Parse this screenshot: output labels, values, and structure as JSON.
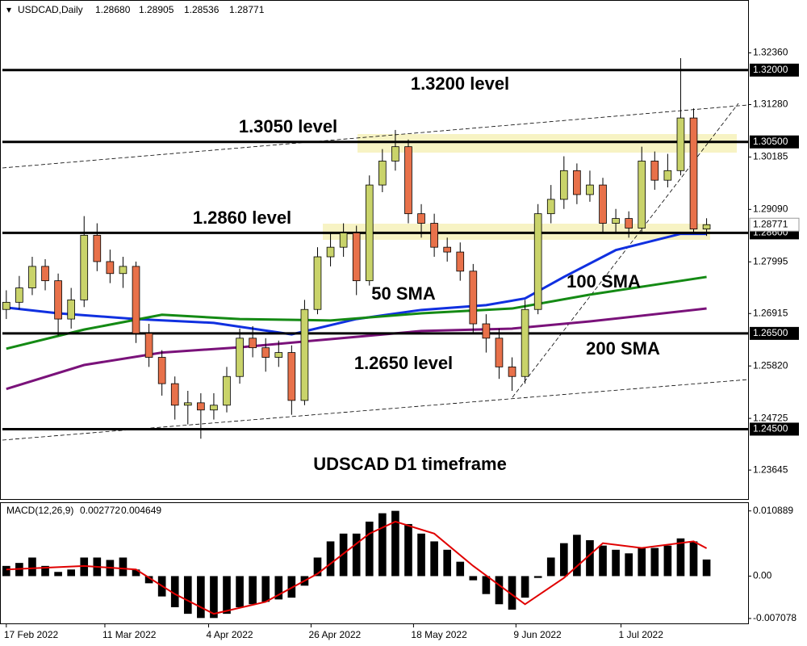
{
  "chart_data": [
    {
      "type": "candlestick",
      "title": "USDCAD,Daily",
      "quote_labels": [
        "1.28680",
        "1.28905",
        "1.28536",
        "1.28771"
      ],
      "annotation": "UDSCAD D1 timeframe",
      "open": [
        1.27,
        1.2715,
        1.2745,
        1.279,
        1.276,
        1.268,
        1.272,
        1.2855,
        1.28,
        1.2775,
        1.279,
        1.265,
        1.26,
        1.2545,
        1.25,
        1.2505,
        1.249,
        1.25,
        1.256,
        1.264,
        1.262,
        1.26,
        1.261,
        1.251,
        1.27,
        1.281,
        1.283,
        1.286,
        1.276,
        1.296,
        1.301,
        1.304,
        1.29,
        1.288,
        1.283,
        1.282,
        1.278,
        1.267,
        1.264,
        1.258,
        1.256,
        1.27,
        1.29,
        1.293,
        1.299,
        1.294,
        1.296,
        1.288,
        1.289,
        1.287,
        1.301,
        1.297,
        1.299,
        1.31,
        1.2868
      ],
      "high": [
        1.274,
        1.277,
        1.281,
        1.2805,
        1.2775,
        1.2745,
        1.2895,
        1.288,
        1.2825,
        1.281,
        1.28,
        1.267,
        1.2615,
        1.256,
        1.253,
        1.2525,
        1.2525,
        1.258,
        1.266,
        1.2665,
        1.264,
        1.2635,
        1.2625,
        1.272,
        1.283,
        1.286,
        1.288,
        1.2875,
        1.298,
        1.3035,
        1.3075,
        1.3055,
        1.292,
        1.29,
        1.285,
        1.284,
        1.2795,
        1.269,
        1.266,
        1.26,
        1.272,
        1.292,
        1.296,
        1.302,
        1.3005,
        1.299,
        1.2975,
        1.291,
        1.2905,
        1.304,
        1.303,
        1.3025,
        1.3225,
        1.312,
        1.28905
      ],
      "low": [
        1.268,
        1.27,
        1.273,
        1.274,
        1.2645,
        1.266,
        1.2705,
        1.278,
        1.2755,
        1.2745,
        1.263,
        1.258,
        1.252,
        1.247,
        1.246,
        1.243,
        1.247,
        1.2485,
        1.2545,
        1.26,
        1.257,
        1.258,
        1.248,
        1.25,
        1.269,
        1.279,
        1.281,
        1.273,
        1.275,
        1.2945,
        1.299,
        1.288,
        1.285,
        1.281,
        1.28,
        1.276,
        1.265,
        1.261,
        1.2555,
        1.253,
        1.2545,
        1.269,
        1.288,
        1.291,
        1.292,
        1.2925,
        1.286,
        1.286,
        1.285,
        1.286,
        1.295,
        1.2955,
        1.298,
        1.286,
        1.28536
      ],
      "close": [
        1.2715,
        1.2745,
        1.279,
        1.276,
        1.268,
        1.272,
        1.2855,
        1.28,
        1.2775,
        1.279,
        1.265,
        1.26,
        1.2545,
        1.25,
        1.2505,
        1.249,
        1.25,
        1.256,
        1.264,
        1.262,
        1.26,
        1.261,
        1.251,
        1.27,
        1.281,
        1.283,
        1.286,
        1.276,
        1.296,
        1.301,
        1.304,
        1.29,
        1.288,
        1.283,
        1.282,
        1.278,
        1.267,
        1.264,
        1.258,
        1.256,
        1.27,
        1.29,
        1.293,
        1.299,
        1.294,
        1.296,
        1.288,
        1.289,
        1.287,
        1.301,
        1.297,
        1.299,
        1.31,
        1.2868,
        1.28771
      ],
      "up_color": "#c9d36a",
      "down_color": "#e8714a",
      "xlim": [
        -0.3,
        57.2
      ],
      "ylim": [
        1.2304,
        1.3338
      ],
      "yticks": [
        {
          "value": 1.3236,
          "label": "1.32360"
        },
        {
          "value": 1.3128,
          "label": "1.31280"
        },
        1.30185,
        {
          "value": 1.2909,
          "label": "1.29090"
        },
        1.27995,
        1.26915,
        {
          "value": 1.2582,
          "label": "1.25820"
        },
        1.24725,
        1.23645
      ],
      "xticks": [
        {
          "value": 0,
          "label": "17 Feb 2022"
        },
        {
          "value": 7.6,
          "label": "11 Mar 2022"
        },
        {
          "value": 15.6,
          "label": "4 Apr 2022"
        },
        {
          "value": 23.5,
          "label": "26 Apr 2022"
        },
        {
          "value": 31.4,
          "label": "18 May 2022"
        },
        {
          "value": 39.3,
          "label": "9 Jun 2022"
        },
        {
          "value": 47.4,
          "label": "1 Jul 2022"
        }
      ],
      "levels": [
        {
          "value": 1.32,
          "label": "1.32000",
          "note": "1.3200 level"
        },
        {
          "value": 1.305,
          "label": "1.30500",
          "note": "1.3050 level"
        },
        {
          "value": 1.286,
          "label": "1.28600",
          "note": "1.2860 level"
        },
        {
          "value": 1.265,
          "label": "1.26500",
          "note": "1.2650 level"
        },
        {
          "value": 1.245,
          "label": "1.24500"
        }
      ],
      "series": [
        {
          "name": "50 SMA",
          "color": "#1030e0",
          "x": [
            0,
            4,
            10,
            16,
            22,
            27,
            32,
            37,
            40,
            43,
            47,
            52,
            54
          ],
          "values": [
            1.2704,
            1.2692,
            1.268,
            1.2672,
            1.2648,
            1.268,
            1.2699,
            1.2709,
            1.2723,
            1.2768,
            1.2824,
            1.2858,
            1.2858
          ]
        },
        {
          "name": "100 SMA",
          "color": "#148a14",
          "x": [
            0,
            6,
            12,
            18,
            25,
            32,
            39,
            45,
            54
          ],
          "values": [
            1.2618,
            1.2658,
            1.2689,
            1.268,
            1.2677,
            1.2692,
            1.2702,
            1.2731,
            1.2768
          ]
        },
        {
          "name": "200 SMA",
          "color": "#7a127a",
          "x": [
            0,
            6,
            12,
            18,
            25,
            32,
            39,
            45,
            54
          ],
          "values": [
            1.2534,
            1.2584,
            1.261,
            1.2621,
            1.2638,
            1.2655,
            1.266,
            1.2675,
            1.2702
          ]
        }
      ]
    },
    {
      "type": "macd",
      "title": "MACD(12,26,9)",
      "bar_color": "#000000",
      "values": [
        0.0017,
        0.0022,
        0.0031,
        0.0017,
        0.0007,
        0.0011,
        0.0031,
        0.0031,
        0.0027,
        0.0031,
        0.0011,
        -0.0012,
        -0.0034,
        -0.0052,
        -0.0063,
        -0.007,
        -0.007,
        -0.0063,
        -0.0052,
        -0.0047,
        -0.0043,
        -0.0039,
        -0.0036,
        -0.0016,
        0.0031,
        0.0058,
        0.0071,
        0.0071,
        0.0091,
        0.0105,
        0.0109,
        0.0087,
        0.0071,
        0.0058,
        0.0044,
        0.0024,
        -0.0007,
        -0.003,
        -0.0047,
        -0.0056,
        -0.0036,
        -0.0003,
        0.0031,
        0.0055,
        0.0069,
        0.006,
        0.0051,
        0.0044,
        0.0038,
        0.0047,
        0.0047,
        0.0051,
        0.0063,
        0.0058,
        0.002772
      ],
      "signal": {
        "color": "#e00000",
        "x": [
          0,
          6,
          10,
          13,
          16,
          20,
          24,
          28,
          30,
          33,
          36,
          40,
          43,
          46,
          49,
          53,
          54
        ],
        "values": [
          0.0011,
          0.0017,
          0.0011,
          -0.003,
          -0.0063,
          -0.0043,
          0.0004,
          0.0071,
          0.0091,
          0.0071,
          0.0017,
          -0.0047,
          -0.0003,
          0.0055,
          0.0047,
          0.0058,
          0.004649
        ]
      },
      "ylim": [
        -0.0079,
        0.0122
      ],
      "yticks": [
        0.010889,
        {
          "value": 0,
          "label": "0.00"
        },
        -0.007078
      ]
    }
  ]
}
